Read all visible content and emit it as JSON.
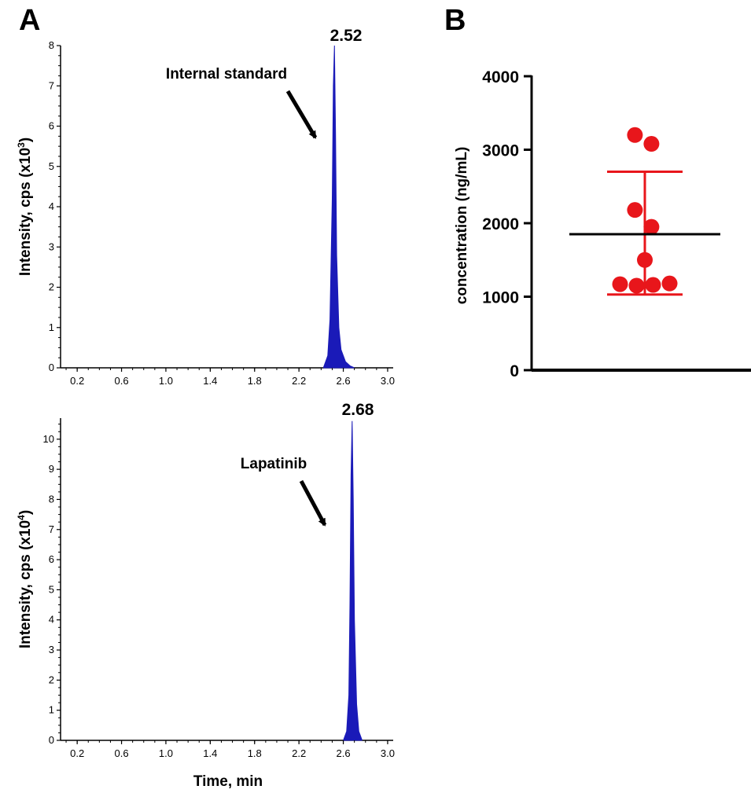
{
  "panels": {
    "a_label": "A",
    "b_label": "B"
  },
  "chart_data": [
    {
      "type": "area",
      "panel": "A",
      "x_ticks": [
        "0.2",
        "0.6",
        "1.0",
        "1.4",
        "1.8",
        "2.2",
        "2.6",
        "3.0"
      ],
      "x_tick_values": [
        0.2,
        0.6,
        1.0,
        1.4,
        1.8,
        2.2,
        2.6,
        3.0
      ],
      "y_ticks": [
        "0",
        "1",
        "2",
        "3",
        "4",
        "5",
        "6",
        "7",
        "8"
      ],
      "y_tick_values": [
        0,
        1,
        2,
        3,
        4,
        5,
        6,
        7,
        8
      ],
      "xlim": [
        0.05,
        3.05
      ],
      "ylim": [
        0,
        8
      ],
      "ylabel": "Intensity, cps (x10",
      "ylabel_exp": "3",
      "ylabel_close": ")",
      "xlabel": "",
      "peak_label": "2.52",
      "annotation": "Internal standard",
      "color": "#1a1ab8",
      "x": [
        2.42,
        2.46,
        2.48,
        2.5,
        2.51,
        2.52,
        2.53,
        2.54,
        2.56,
        2.58,
        2.62,
        2.66,
        2.7
      ],
      "y": [
        0,
        0.3,
        1.2,
        4.2,
        7.0,
        8.0,
        5.8,
        2.8,
        1.0,
        0.45,
        0.15,
        0.05,
        0
      ]
    },
    {
      "type": "area",
      "panel": "A",
      "x_ticks": [
        "0.2",
        "0.6",
        "1.0",
        "1.4",
        "1.8",
        "2.2",
        "2.6",
        "3.0"
      ],
      "x_tick_values": [
        0.2,
        0.6,
        1.0,
        1.4,
        1.8,
        2.2,
        2.6,
        3.0
      ],
      "y_ticks": [
        "0",
        "1",
        "2",
        "3",
        "4",
        "5",
        "6",
        "7",
        "8",
        "9",
        "10"
      ],
      "y_tick_values": [
        0,
        1,
        2,
        3,
        4,
        5,
        6,
        7,
        8,
        9,
        10
      ],
      "xlim": [
        0.05,
        3.05
      ],
      "ylim": [
        0,
        10.7
      ],
      "ylabel": "Intensity, cps (x10",
      "ylabel_exp": "4",
      "ylabel_close": ")",
      "xlabel": "Time, min",
      "peak_label": "2.68",
      "annotation": "Lapatinib",
      "color": "#1a1ab8",
      "x": [
        2.6,
        2.63,
        2.65,
        2.66,
        2.67,
        2.68,
        2.69,
        2.7,
        2.72,
        2.74,
        2.77
      ],
      "y": [
        0,
        0.3,
        1.5,
        4.5,
        8.8,
        10.6,
        8.0,
        4.0,
        1.2,
        0.3,
        0
      ]
    },
    {
      "type": "scatter",
      "panel": "B",
      "ylabel": "concentration (ng/mL)",
      "xlabel": "",
      "y_ticks": [
        "0",
        "1000",
        "2000",
        "3000",
        "4000"
      ],
      "y_tick_values": [
        0,
        1000,
        2000,
        3000,
        4000
      ],
      "ylim": [
        0,
        4000
      ],
      "points": [
        3200,
        3080,
        2180,
        1950,
        1500,
        1170,
        1150,
        1160,
        1180
      ],
      "point_offsets": [
        -0.18,
        0.12,
        -0.18,
        0.12,
        0.0,
        -0.45,
        -0.15,
        0.15,
        0.45
      ],
      "mean": 1850,
      "sd_upper": 2700,
      "sd_lower": 1030,
      "point_color": "#e8161b",
      "mean_color": "#000000"
    }
  ]
}
